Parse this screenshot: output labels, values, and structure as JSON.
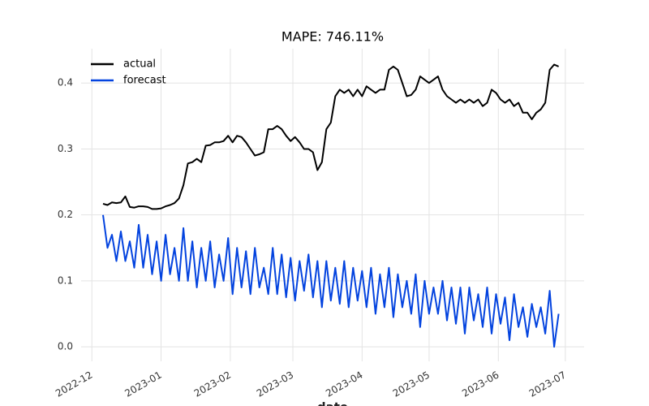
{
  "chart_data": {
    "type": "line",
    "title": "MAPE: 746.11%",
    "xlabel": "date",
    "series": [
      {
        "name": "actual",
        "color": "#000000",
        "values": [
          0.217,
          0.215,
          0.219,
          0.218,
          0.219,
          0.228,
          0.212,
          0.211,
          0.213,
          0.213,
          0.212,
          0.209,
          0.209,
          0.21,
          0.213,
          0.215,
          0.218,
          0.225,
          0.245,
          0.278,
          0.28,
          0.285,
          0.28,
          0.305,
          0.306,
          0.31,
          0.31,
          0.312,
          0.32,
          0.31,
          0.32,
          0.318,
          0.31,
          0.3,
          0.29,
          0.292,
          0.295,
          0.33,
          0.33,
          0.335,
          0.33,
          0.32,
          0.312,
          0.318,
          0.31,
          0.3,
          0.3,
          0.295,
          0.268,
          0.28,
          0.33,
          0.34,
          0.38,
          0.39,
          0.385,
          0.39,
          0.38,
          0.39,
          0.38,
          0.395,
          0.39,
          0.385,
          0.39,
          0.39,
          0.42,
          0.425,
          0.42,
          0.4,
          0.38,
          0.382,
          0.39,
          0.41,
          0.405,
          0.4,
          0.405,
          0.41,
          0.39,
          0.38,
          0.375,
          0.37,
          0.375,
          0.37,
          0.375,
          0.37,
          0.375,
          0.365,
          0.37,
          0.39,
          0.385,
          0.375,
          0.37,
          0.375,
          0.365,
          0.37,
          0.355,
          0.355,
          0.345,
          0.355,
          0.36,
          0.37,
          0.42,
          0.428,
          0.425
        ]
      },
      {
        "name": "forecast",
        "color": "#0343df",
        "values": [
          0.2,
          0.15,
          0.17,
          0.13,
          0.175,
          0.13,
          0.16,
          0.12,
          0.185,
          0.12,
          0.17,
          0.11,
          0.16,
          0.1,
          0.17,
          0.11,
          0.15,
          0.1,
          0.18,
          0.1,
          0.16,
          0.09,
          0.15,
          0.1,
          0.16,
          0.09,
          0.14,
          0.1,
          0.165,
          0.08,
          0.15,
          0.09,
          0.145,
          0.08,
          0.15,
          0.09,
          0.12,
          0.08,
          0.15,
          0.08,
          0.14,
          0.075,
          0.135,
          0.07,
          0.13,
          0.085,
          0.14,
          0.075,
          0.13,
          0.06,
          0.13,
          0.07,
          0.12,
          0.065,
          0.13,
          0.06,
          0.12,
          0.07,
          0.115,
          0.06,
          0.12,
          0.05,
          0.11,
          0.06,
          0.12,
          0.045,
          0.11,
          0.06,
          0.1,
          0.05,
          0.11,
          0.03,
          0.1,
          0.05,
          0.09,
          0.05,
          0.1,
          0.04,
          0.09,
          0.035,
          0.09,
          0.02,
          0.09,
          0.04,
          0.08,
          0.03,
          0.09,
          0.02,
          0.08,
          0.035,
          0.075,
          0.01,
          0.08,
          0.03,
          0.06,
          0.015,
          0.065,
          0.03,
          0.06,
          0.02,
          0.085,
          0,
          0.05
        ]
      }
    ],
    "xlim": [
      -4.9,
      107.7
    ],
    "xticks": [
      {
        "value": -2.5,
        "label": "2022-12"
      },
      {
        "value": 13,
        "label": "2023-01"
      },
      {
        "value": 28.5,
        "label": "2023-02"
      },
      {
        "value": 42.5,
        "label": "2023-03"
      },
      {
        "value": 58,
        "label": "2023-04"
      },
      {
        "value": 73,
        "label": "2023-05"
      },
      {
        "value": 88.5,
        "label": "2023-06"
      },
      {
        "value": 103.5,
        "label": "2023-07"
      }
    ],
    "ylim": [
      -0.022,
      0.452
    ],
    "yticks": [
      {
        "value": 0,
        "label": "0.0"
      },
      0.1,
      0.2,
      0.3,
      0.4
    ],
    "grid": true,
    "legend": "upper-left"
  }
}
